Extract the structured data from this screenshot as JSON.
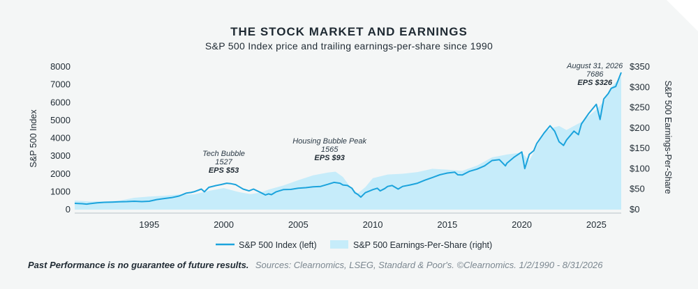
{
  "colors": {
    "background_panel": "#f4f6f6",
    "price_line": "#1ba3dc",
    "eps_area": "#c6ecfa",
    "text": "#1f2a33"
  },
  "footer": {
    "disclaimer": "Past Performance is no guarantee of future results.",
    "sources": "Sources: Clearnomics, LSEG, Standard & Poor's. ©Clearnomics. 1/2/1990 - 8/31/2026"
  },
  "chart_data": {
    "type": "line",
    "title": "THE STOCK MARKET AND EARNINGS",
    "subtitle": "S&P 500 Index price and trailing earnings-per-share since 1990",
    "ylabel_left": "S&P 500 Index",
    "ylabel_right": "S&P 500 Earnings-Per-Share",
    "ylim_left": [
      0,
      8000
    ],
    "ylim_right": [
      0,
      350
    ],
    "xlim": [
      1990.0,
      2026.67
    ],
    "x_ticks": [
      1995,
      2000,
      2005,
      2010,
      2015,
      2020,
      2025
    ],
    "x_tick_labels": [
      "1995",
      "2000",
      "2005",
      "2010",
      "2015",
      "2020",
      "2025"
    ],
    "y_left_ticks": [
      0,
      1000,
      2000,
      3000,
      4000,
      5000,
      6000,
      7000,
      8000
    ],
    "y_left_tick_labels": [
      "0",
      "1000",
      "2000",
      "3000",
      "4000",
      "5000",
      "6000",
      "7000",
      "8000"
    ],
    "y_right_ticks": [
      0,
      50,
      100,
      150,
      200,
      250,
      300,
      350
    ],
    "y_right_tick_labels": [
      "$0",
      "$50",
      "$100",
      "$150",
      "$200",
      "$250",
      "$300",
      "$350"
    ],
    "grid": false,
    "legend_position": "bottom",
    "series": [
      {
        "name": "S&P 500 Index (left)",
        "type": "line",
        "axis": "left",
        "x": [
          1990.0,
          1990.5,
          1990.8,
          1991.0,
          1991.5,
          1992.0,
          1992.5,
          1993.0,
          1993.5,
          1994.0,
          1994.5,
          1995.0,
          1995.5,
          1996.0,
          1996.5,
          1997.0,
          1997.5,
          1997.8,
          1998.0,
          1998.5,
          1998.7,
          1999.0,
          1999.5,
          1999.8,
          2000.2,
          2000.5,
          2000.8,
          2001.0,
          2001.3,
          2001.7,
          2002.0,
          2002.5,
          2002.8,
          2003.0,
          2003.2,
          2003.5,
          2004.0,
          2004.5,
          2005.0,
          2005.5,
          2006.0,
          2006.5,
          2007.0,
          2007.4,
          2007.8,
          2008.0,
          2008.3,
          2008.6,
          2008.8,
          2009.0,
          2009.2,
          2009.5,
          2010.0,
          2010.3,
          2010.5,
          2010.8,
          2011.0,
          2011.3,
          2011.7,
          2012.0,
          2012.5,
          2013.0,
          2013.5,
          2014.0,
          2014.5,
          2015.0,
          2015.5,
          2015.7,
          2016.0,
          2016.5,
          2017.0,
          2017.5,
          2018.0,
          2018.5,
          2018.9,
          2019.0,
          2019.5,
          2020.0,
          2020.2,
          2020.5,
          2020.8,
          2021.0,
          2021.5,
          2021.9,
          2022.2,
          2022.5,
          2022.8,
          2023.0,
          2023.5,
          2023.8,
          2024.0,
          2024.5,
          2024.8,
          2025.0,
          2025.25,
          2025.5,
          2025.8,
          2026.0,
          2026.3,
          2026.67
        ],
        "values": [
          350,
          330,
          310,
          330,
          380,
          410,
          420,
          440,
          450,
          470,
          450,
          470,
          560,
          620,
          670,
          760,
          930,
          960,
          1000,
          1150,
          1000,
          1250,
          1350,
          1400,
          1480,
          1450,
          1400,
          1300,
          1150,
          1050,
          1150,
          950,
          820,
          880,
          840,
          990,
          1120,
          1130,
          1200,
          1230,
          1280,
          1300,
          1420,
          1527,
          1480,
          1380,
          1350,
          1200,
          950,
          850,
          700,
          950,
          1120,
          1200,
          1050,
          1180,
          1300,
          1350,
          1150,
          1300,
          1380,
          1480,
          1650,
          1800,
          1950,
          2050,
          2100,
          1950,
          1940,
          2150,
          2270,
          2450,
          2750,
          2800,
          2450,
          2600,
          2950,
          3230,
          2300,
          3100,
          3300,
          3700,
          4300,
          4700,
          4400,
          3800,
          3600,
          3900,
          4400,
          4200,
          4800,
          5400,
          5700,
          5900,
          5050,
          6200,
          6500,
          6800,
          6900,
          7686
        ]
      },
      {
        "name": "S&P 500 Earnings-Per-Share (right)",
        "type": "area",
        "axis": "right",
        "x": [
          1990.0,
          1991.0,
          1992.0,
          1993.0,
          1994.0,
          1995.0,
          1996.0,
          1997.0,
          1998.0,
          1999.0,
          2000.0,
          2001.0,
          2001.8,
          2002.5,
          2003.0,
          2004.0,
          2005.0,
          2006.0,
          2007.0,
          2007.5,
          2008.0,
          2008.5,
          2009.0,
          2009.5,
          2010.0,
          2011.0,
          2012.0,
          2013.0,
          2014.0,
          2015.0,
          2016.0,
          2017.0,
          2018.0,
          2019.0,
          2020.0,
          2020.5,
          2021.0,
          2021.5,
          2022.0,
          2022.5,
          2023.0,
          2023.5,
          2024.0,
          2024.5,
          2025.0,
          2025.5,
          2026.0,
          2026.67
        ],
        "values": [
          22,
          20,
          20,
          22,
          29,
          32,
          34,
          37,
          37,
          46,
          53,
          43,
          38,
          42,
          49,
          59,
          72,
          84,
          91,
          93,
          80,
          55,
          40,
          55,
          77,
          86,
          88,
          92,
          100,
          98,
          95,
          108,
          128,
          135,
          140,
          120,
          155,
          190,
          200,
          205,
          195,
          205,
          215,
          230,
          245,
          265,
          300,
          326
        ]
      }
    ],
    "annotations": [
      {
        "lines": [
          "Tech Bubble",
          "1527"
        ],
        "bold": "EPS $53",
        "x": 2000.0
      },
      {
        "lines": [
          "Housing Bubble Peak",
          "1565"
        ],
        "bold": "EPS $93",
        "x": 2007.1
      },
      {
        "lines": [
          "August 31, 2026",
          "7686"
        ],
        "bold": "EPS $326",
        "x": 2024.9
      }
    ]
  }
}
